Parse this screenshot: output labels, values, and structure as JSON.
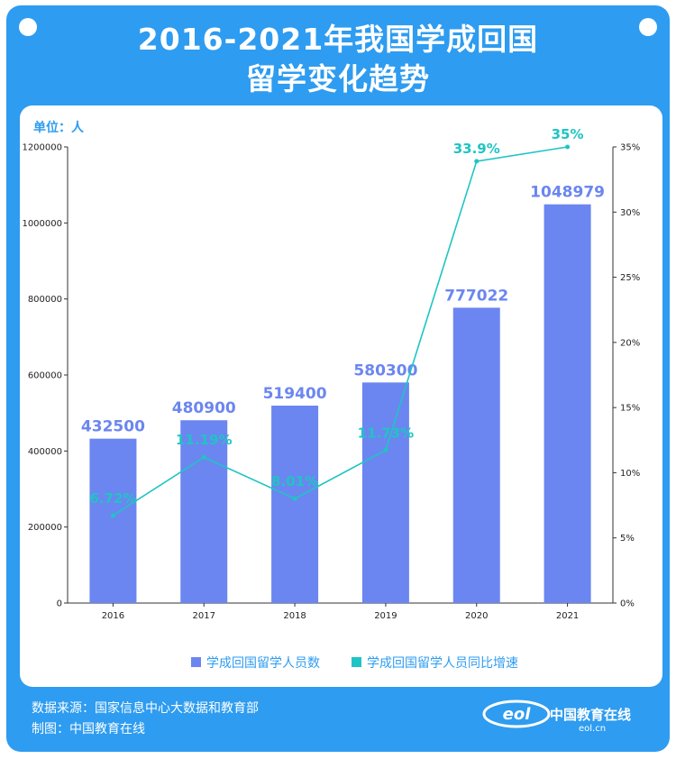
{
  "header": {
    "title_line1": "2016-2021年我国学成回国",
    "title_line2": "留学变化趋势"
  },
  "unit_label": "单位：人",
  "footer": {
    "source": "数据来源：国家信息中心大数据和教育部",
    "maker": "制图：中国教育在线"
  },
  "logo": {
    "name": "中国教育在线",
    "url": "eol.cn",
    "mark": "eol"
  },
  "colors": {
    "frame": "#2e9cf0",
    "bar": "#6b86f0",
    "line": "#1fc4c4",
    "axis": "#333333"
  },
  "chart_data": {
    "type": "bar",
    "categories": [
      "2016",
      "2017",
      "2018",
      "2019",
      "2020",
      "2021"
    ],
    "series": [
      {
        "name": "学成回国留学人员数",
        "type": "bar",
        "axis": "left",
        "values": [
          432500,
          480900,
          519400,
          580300,
          777022,
          1048979
        ],
        "labels": [
          "432500",
          "480900",
          "519400",
          "580300",
          "777022",
          "1048979"
        ]
      },
      {
        "name": "学成回国留学人员同比增速",
        "type": "line",
        "axis": "right",
        "values": [
          6.72,
          11.19,
          8.01,
          11.73,
          33.9,
          35
        ],
        "labels": [
          "6.72%",
          "11.19%",
          "8.01%",
          "11.73%",
          "33.9%",
          "35%"
        ]
      }
    ],
    "y_left": {
      "lim": [
        0,
        1200000
      ],
      "ticks": [
        "0",
        "200000",
        "400000",
        "600000",
        "800000",
        "1000000",
        "1200000"
      ]
    },
    "y_right": {
      "lim": [
        0,
        35
      ],
      "ticks": [
        "0%",
        "5%",
        "10%",
        "15%",
        "20%",
        "25%",
        "30%",
        "35%"
      ]
    },
    "legend_position": "bottom"
  }
}
